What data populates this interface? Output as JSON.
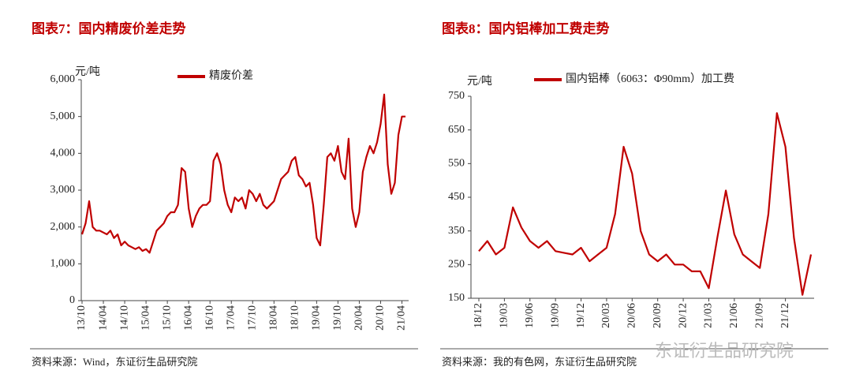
{
  "chart_data": [
    {
      "type": "line",
      "title": "图表7：国内精废价差走势",
      "y_label": "元/吨",
      "source": "资料来源：Wind，东证衍生品研究院",
      "categories": [
        "13/10",
        null,
        null,
        null,
        null,
        null,
        "14/04",
        null,
        null,
        null,
        null,
        null,
        "14/10",
        null,
        null,
        null,
        null,
        null,
        "15/04",
        null,
        null,
        null,
        null,
        null,
        "15/10",
        null,
        null,
        null,
        null,
        null,
        "16/04",
        null,
        null,
        null,
        null,
        null,
        "16/10",
        null,
        null,
        null,
        null,
        null,
        "17/04",
        null,
        null,
        null,
        null,
        null,
        "17/10",
        null,
        null,
        null,
        null,
        null,
        "18/04",
        null,
        null,
        null,
        null,
        null,
        "18/10",
        null,
        null,
        null,
        null,
        null,
        "19/04",
        null,
        null,
        null,
        null,
        null,
        "19/10",
        null,
        null,
        null,
        null,
        null,
        "20/04",
        null,
        null,
        null,
        null,
        null,
        "20/10",
        null,
        null,
        null,
        null,
        null,
        "21/04",
        null
      ],
      "series": [
        {
          "name": "精废价差",
          "color": "#c00000",
          "values": [
            1800,
            2100,
            2700,
            2000,
            1900,
            1900,
            1850,
            1800,
            1900,
            1700,
            1800,
            1500,
            1600,
            1500,
            1450,
            1400,
            1450,
            1350,
            1400,
            1300,
            1600,
            1900,
            2000,
            2100,
            2300,
            2400,
            2400,
            2600,
            3600,
            3500,
            2500,
            2000,
            2300,
            2500,
            2600,
            2600,
            2700,
            3800,
            4000,
            3700,
            3000,
            2600,
            2400,
            2800,
            2700,
            2800,
            2500,
            3000,
            2900,
            2700,
            2900,
            2600,
            2500,
            2600,
            2700,
            3000,
            3300,
            3400,
            3500,
            3800,
            3900,
            3400,
            3300,
            3100,
            3200,
            2600,
            1700,
            1500,
            2600,
            3900,
            4000,
            3800,
            4200,
            3500,
            3300,
            4400,
            2500,
            2000,
            2400,
            3500,
            3900,
            4200,
            4000,
            4300,
            4800,
            5600,
            3700,
            2900,
            3200,
            4500,
            5000,
            5000
          ]
        }
      ],
      "ylim": [
        0,
        6000
      ],
      "yticks": [
        0,
        {
          "value": 1000,
          "label": "1,000"
        },
        {
          "value": 2000,
          "label": "2,000"
        },
        {
          "value": 3000,
          "label": "3,000"
        },
        {
          "value": 4000,
          "label": "4,000"
        },
        {
          "value": 5000,
          "label": "5,000"
        },
        {
          "value": 6000,
          "label": "6,000"
        }
      ]
    },
    {
      "type": "line",
      "title": "图表8：国内铝棒加工费走势",
      "y_label": "元/吨",
      "source": "资料来源：我的有色网，东证衍生品研究院",
      "watermark": "东证衍生品研究院",
      "categories": [
        "18/12",
        null,
        null,
        "19/03",
        null,
        null,
        "19/06",
        null,
        null,
        "19/09",
        null,
        null,
        "19/12",
        null,
        null,
        "20/03",
        null,
        null,
        "20/06",
        null,
        null,
        "20/09",
        null,
        null,
        "20/12",
        null,
        null,
        "21/03",
        null,
        null,
        "21/06",
        null,
        null,
        "21/09",
        null,
        null,
        "21/12",
        null,
        null,
        null
      ],
      "series": [
        {
          "name": "国内铝棒（6063：Φ90mm）加工费",
          "color": "#c00000",
          "values": [
            290,
            320,
            280,
            300,
            420,
            360,
            320,
            300,
            320,
            290,
            285,
            280,
            300,
            260,
            280,
            300,
            400,
            600,
            520,
            350,
            280,
            260,
            280,
            250,
            250,
            230,
            230,
            180,
            330,
            470,
            340,
            280,
            260,
            240,
            400,
            700,
            600,
            330,
            160,
            280
          ]
        }
      ],
      "ylim": [
        150,
        750
      ],
      "yticks": [
        150,
        250,
        350,
        450,
        550,
        650,
        750
      ]
    }
  ]
}
